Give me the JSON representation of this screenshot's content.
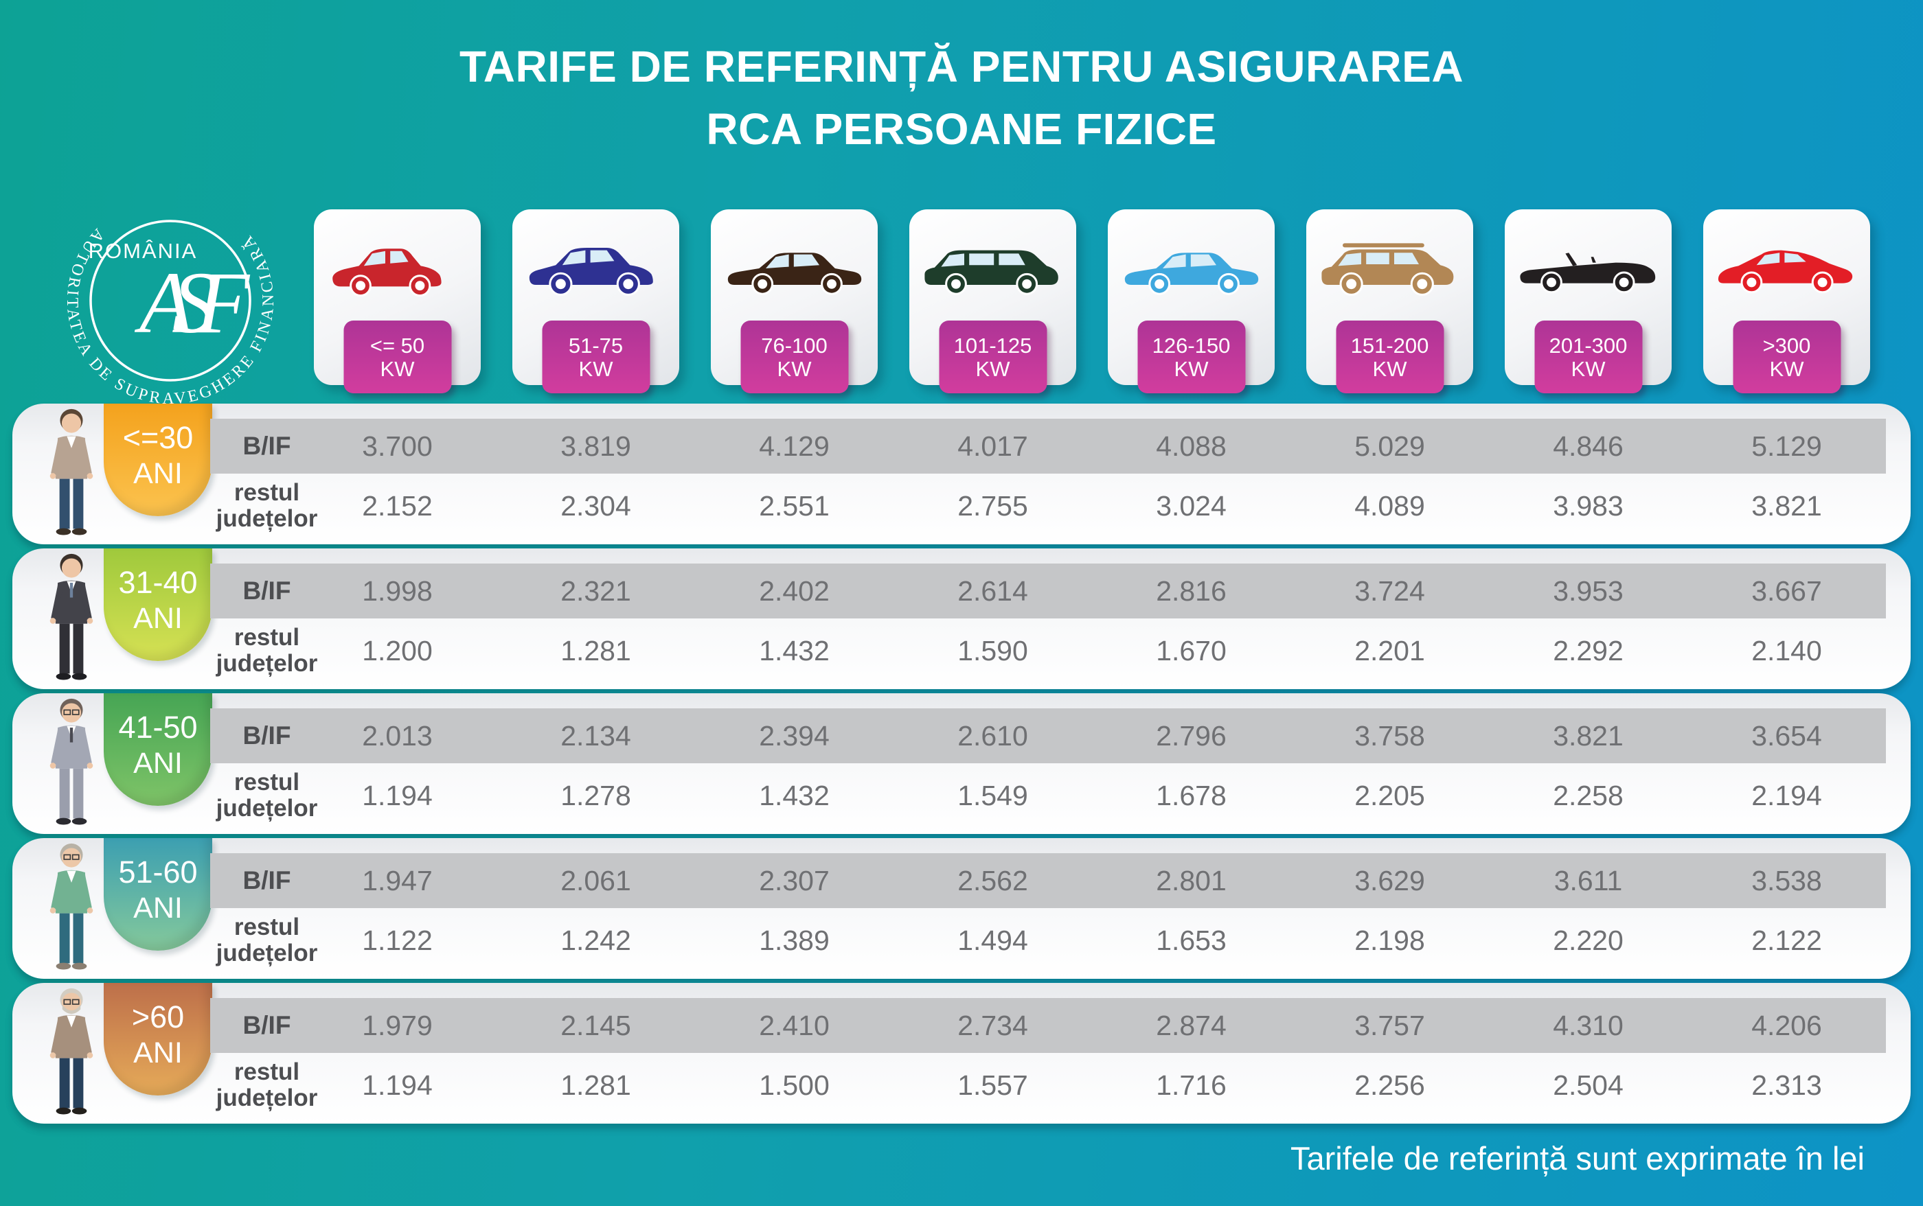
{
  "title": {
    "line1": "TARIFE DE REFERINȚĂ PENTRU ASIGURAREA",
    "line2": "RCA PERSOANE FIZICE"
  },
  "logo": {
    "country": "ROMÂNIA",
    "monogram": "ASF",
    "ring_text": "AUTORITATEA DE SUPRAVEGHERE FINANCIARĂ"
  },
  "power_categories": [
    {
      "range": "<= 50",
      "unit": "KW",
      "vehicle": "hatchback",
      "color": "#c9252c"
    },
    {
      "range": "51-75",
      "unit": "KW",
      "vehicle": "crossover",
      "color": "#2e3192"
    },
    {
      "range": "76-100",
      "unit": "KW",
      "vehicle": "sedan",
      "color": "#3a2416"
    },
    {
      "range": "101-125",
      "unit": "KW",
      "vehicle": "minivan",
      "color": "#1e3d2b"
    },
    {
      "range": "126-150",
      "unit": "KW",
      "vehicle": "sedan",
      "color": "#3ea8de"
    },
    {
      "range": "151-200",
      "unit": "KW",
      "vehicle": "suv",
      "color": "#b28755"
    },
    {
      "range": "201-300",
      "unit": "KW",
      "vehicle": "convertible",
      "color": "#231f20"
    },
    {
      "range": ">300",
      "unit": "KW",
      "vehicle": "sports",
      "color": "#e31e26"
    }
  ],
  "row_labels": {
    "bif": "B/IF",
    "rest": "restul județelor"
  },
  "age_groups": [
    {
      "range": "<=30",
      "suffix": "ANI",
      "persona": "young-man",
      "badge_from": "#f4a21d",
      "badge_to": "#fbc34f"
    },
    {
      "range": "31-40",
      "suffix": "ANI",
      "persona": "suit-man",
      "badge_from": "#9fc93c",
      "badge_to": "#d6e154"
    },
    {
      "range": "41-50",
      "suffix": "ANI",
      "persona": "glasses-man",
      "badge_from": "#46a554",
      "badge_to": "#7fc468"
    },
    {
      "range": "51-60",
      "suffix": "ANI",
      "persona": "vest-man",
      "badge_from": "#3c9fb1",
      "badge_to": "#85c99b"
    },
    {
      "range": ">60",
      "suffix": "ANI",
      "persona": "elderly-man",
      "badge_from": "#bd6f4a",
      "badge_to": "#e6ab59"
    }
  ],
  "chart_data": {
    "type": "table",
    "title": "TARIFE DE REFERINȚĂ PENTRU ASIGURAREA RCA PERSOANE FIZICE",
    "unit": "lei",
    "columns": [
      "<= 50 KW",
      "51-75 KW",
      "76-100 KW",
      "101-125 KW",
      "126-150 KW",
      "151-200 KW",
      "201-300 KW",
      ">300 KW"
    ],
    "row_groups": [
      "<=30 ANI",
      "31-40 ANI",
      "41-50 ANI",
      "51-60 ANI",
      ">60 ANI"
    ],
    "series_per_group": [
      "B/IF",
      "restul județelor"
    ],
    "rows": [
      {
        "age": "<=30 ANI",
        "bif": [
          "3.700",
          "3.819",
          "4.129",
          "4.017",
          "4.088",
          "5.029",
          "4.846",
          "5.129"
        ],
        "rest": [
          "2.152",
          "2.304",
          "2.551",
          "2.755",
          "3.024",
          "4.089",
          "3.983",
          "3.821"
        ]
      },
      {
        "age": "31-40 ANI",
        "bif": [
          "1.998",
          "2.321",
          "2.402",
          "2.614",
          "2.816",
          "3.724",
          "3.953",
          "3.667"
        ],
        "rest": [
          "1.200",
          "1.281",
          "1.432",
          "1.590",
          "1.670",
          "2.201",
          "2.292",
          "2.140"
        ]
      },
      {
        "age": "41-50 ANI",
        "bif": [
          "2.013",
          "2.134",
          "2.394",
          "2.610",
          "2.796",
          "3.758",
          "3.821",
          "3.654"
        ],
        "rest": [
          "1.194",
          "1.278",
          "1.432",
          "1.549",
          "1.678",
          "2.205",
          "2.258",
          "2.194"
        ]
      },
      {
        "age": "51-60 ANI",
        "bif": [
          "1.947",
          "2.061",
          "2.307",
          "2.562",
          "2.801",
          "3.629",
          "3.611",
          "3.538"
        ],
        "rest": [
          "1.122",
          "1.242",
          "1.389",
          "1.494",
          "1.653",
          "2.198",
          "2.220",
          "2.122"
        ]
      },
      {
        "age": ">60 ANI",
        "bif": [
          "1.979",
          "2.145",
          "2.410",
          "2.734",
          "2.874",
          "3.757",
          "4.310",
          "4.206"
        ],
        "rest": [
          "1.194",
          "1.281",
          "1.500",
          "1.557",
          "1.716",
          "2.256",
          "2.504",
          "2.313"
        ]
      }
    ]
  },
  "footer": {
    "note": "Tarifele de referință sunt exprimate în lei"
  },
  "colors": {
    "background_left": "#0da295",
    "background_right": "#0d93c6",
    "kw_badge_from": "#ae3496",
    "kw_badge_to": "#d23d9e",
    "bif_stripe": "#c5c6c8",
    "value_text": "#6f7073",
    "label_text": "#4d4e51"
  }
}
